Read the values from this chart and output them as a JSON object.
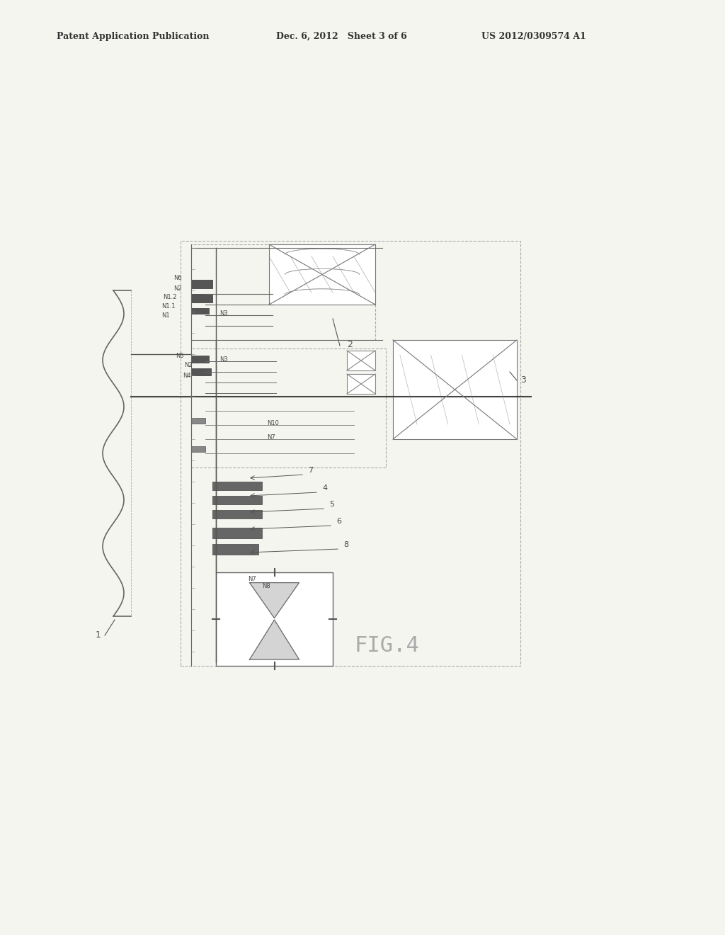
{
  "title": "FIG.4",
  "header_left": "Patent Application Publication",
  "header_mid": "Dec. 6, 2012   Sheet 3 of 6",
  "header_right": "US 2012/0309574 A1",
  "bg_color": "#f5f5f0",
  "line_color": "#555555",
  "dark_color": "#333333",
  "label_1": "1",
  "label_2": "2",
  "label_3": "3",
  "labels_N": [
    "N1",
    "N1.1",
    "N1.2",
    "N2",
    "N3",
    "N4",
    "N5",
    "N6",
    "N7",
    "N8",
    "N10"
  ],
  "labels_num": [
    "4",
    "5",
    "6",
    "7",
    "8"
  ]
}
